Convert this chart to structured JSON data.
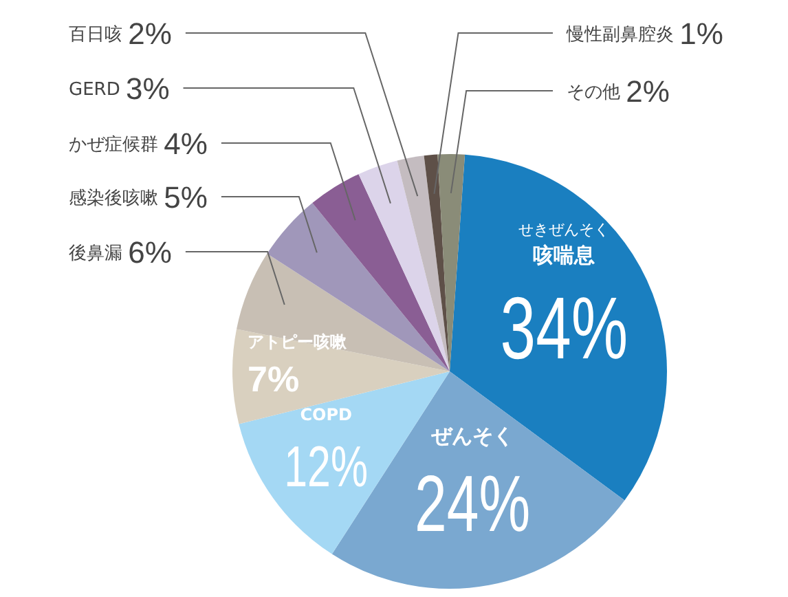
{
  "chart_data": {
    "type": "pie",
    "categories": [
      "咳喘息",
      "ぜんそく",
      "COPD",
      "アトピー咳嗽",
      "後鼻漏",
      "感染後咳嗽",
      "かぜ症候群",
      "GERD",
      "百日咳",
      "慢性副鼻腔炎",
      "その他"
    ],
    "values": [
      34,
      24,
      12,
      7,
      6,
      5,
      4,
      3,
      2,
      1,
      2
    ],
    "value_labels": [
      "34%",
      "24%",
      "12%",
      "7%",
      "6%",
      "5%",
      "4%",
      "3%",
      "2%",
      "1%",
      "2%"
    ],
    "colors": [
      "#1a7fc0",
      "#7aa8d0",
      "#a4d8f4",
      "#d9d0bf",
      "#c8bfb4",
      "#a097ba",
      "#8a5e94",
      "#dcd4ea",
      "#c4bcc0",
      "#5e5048",
      "#8a8c78"
    ],
    "annotations": [
      "せきぜんそく"
    ],
    "legend": false
  }
}
